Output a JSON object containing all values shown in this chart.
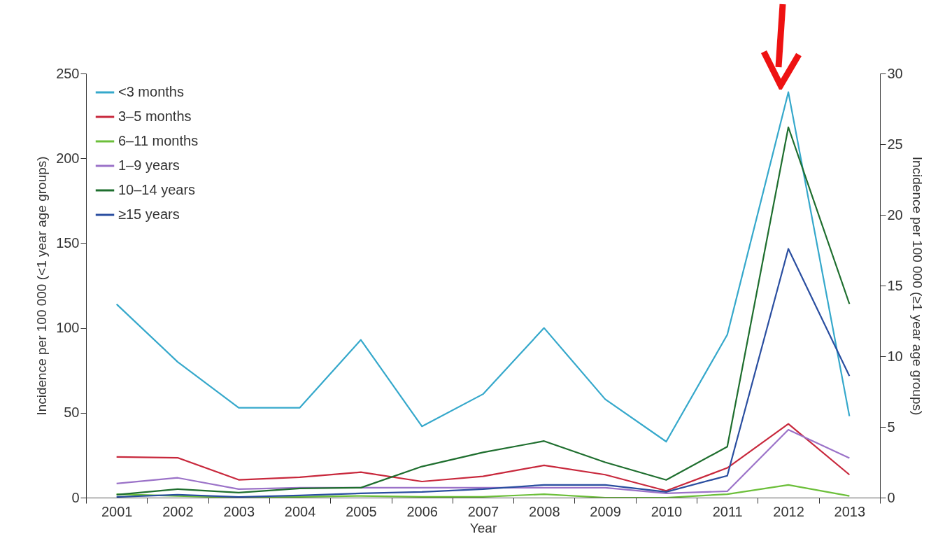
{
  "chart_data": {
    "type": "line",
    "xlabel": "Year",
    "ylabel": "Incidence per 100 000 (<1 year age groups)",
    "y2label": "Incidence per 100 000 (≥1 year age groups)",
    "categories": [
      "2001",
      "2002",
      "2003",
      "2004",
      "2005",
      "2006",
      "2007",
      "2008",
      "2009",
      "2010",
      "2011",
      "2012",
      "2013"
    ],
    "ylim": [
      0,
      250
    ],
    "yticks": [
      0,
      50,
      100,
      150,
      200,
      250
    ],
    "y2lim": [
      0,
      30
    ],
    "y2ticks": [
      0,
      5,
      10,
      15,
      20,
      25,
      30
    ],
    "legend": "top left",
    "grid": false,
    "series": [
      {
        "name": "<3 months",
        "color": "#35a8cb",
        "axis": "y",
        "values": [
          114,
          80,
          53,
          53,
          93,
          42,
          61,
          100,
          58,
          33,
          96,
          239,
          48
        ]
      },
      {
        "name": "3–5 months",
        "color": "#c8283c",
        "axis": "y",
        "values": [
          24,
          23.5,
          10.5,
          12,
          15,
          9.5,
          12.5,
          19,
          13.5,
          4,
          17.5,
          43.5,
          13.5
        ]
      },
      {
        "name": "6–11 months",
        "color": "#6cbf3a",
        "axis": "y",
        "values": [
          2,
          1,
          0,
          0.5,
          1,
          0.5,
          0.5,
          2,
          0,
          0,
          2,
          7.5,
          1
        ]
      },
      {
        "name": "1–9 years",
        "color": "#9b72c8",
        "axis": "y2",
        "values": [
          1.0,
          1.4,
          0.6,
          0.7,
          0.7,
          0.7,
          0.7,
          0.7,
          0.7,
          0.3,
          0.45,
          4.8,
          2.8
        ]
      },
      {
        "name": "10–14 years",
        "color": "#1e6e2e",
        "axis": "y2",
        "values": [
          0.2,
          0.6,
          0.35,
          0.65,
          0.7,
          2.2,
          3.2,
          4.0,
          2.5,
          1.25,
          3.6,
          26.2,
          13.7
        ]
      },
      {
        "name": "≥15 years",
        "color": "#2a4ea0",
        "axis": "y2",
        "values": [
          0.05,
          0.2,
          0.05,
          0.15,
          0.3,
          0.4,
          0.6,
          0.9,
          0.9,
          0.4,
          1.55,
          17.6,
          8.6
        ]
      }
    ]
  }
}
